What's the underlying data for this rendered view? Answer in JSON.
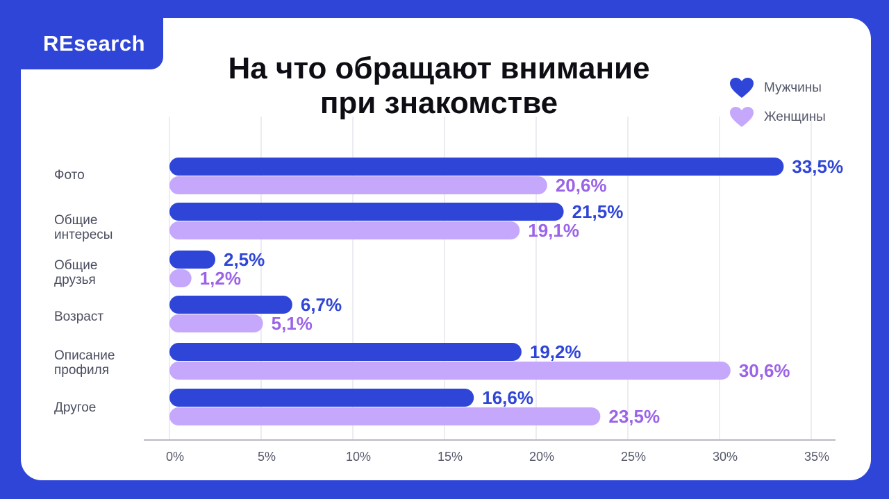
{
  "brand": "REsearch",
  "title_lines": [
    "На что обращают внимание",
    "при знакомстве"
  ],
  "legend": [
    {
      "label": "Мужчины",
      "color": "#2f45d8",
      "icon": "heart-icon"
    },
    {
      "label": "Женщины",
      "color": "#c5a8fb",
      "icon": "heart-icon"
    }
  ],
  "colors": {
    "men_bar": "#2f45d8",
    "women_bar": "#c5a8fb",
    "men_text": "#2f45d8",
    "women_text": "#9b63e8",
    "grid": "#e6e6ee",
    "axis": "#b9bac6"
  },
  "chart_data": {
    "type": "bar",
    "orientation": "horizontal",
    "title": "На что обращают внимание при знакомстве",
    "categories": [
      [
        "Фото"
      ],
      [
        "Общие",
        "интересы"
      ],
      [
        "Общие",
        "друзья"
      ],
      [
        "Возраст"
      ],
      [
        "Описание",
        "профиля"
      ],
      [
        "Другое"
      ]
    ],
    "series": [
      {
        "name": "Мужчины",
        "values": [
          33.5,
          21.5,
          2.5,
          6.7,
          19.2,
          16.6
        ],
        "labels": [
          "33,5%",
          "21,5%",
          "2,5%",
          "6,7%",
          "19,2%",
          "16,6%"
        ]
      },
      {
        "name": "Женщины",
        "values": [
          20.6,
          19.1,
          1.2,
          5.1,
          30.6,
          23.5
        ],
        "labels": [
          "20,6%",
          "19,1%",
          "1,2%",
          "5,1%",
          "30,6%",
          "23,5%"
        ]
      }
    ],
    "xlim": [
      0,
      35
    ],
    "xticks": [
      "0%",
      "5%",
      "10%",
      "15%",
      "20%",
      "25%",
      "30%",
      "35%"
    ],
    "grid": true,
    "legend_position": "top-right"
  }
}
